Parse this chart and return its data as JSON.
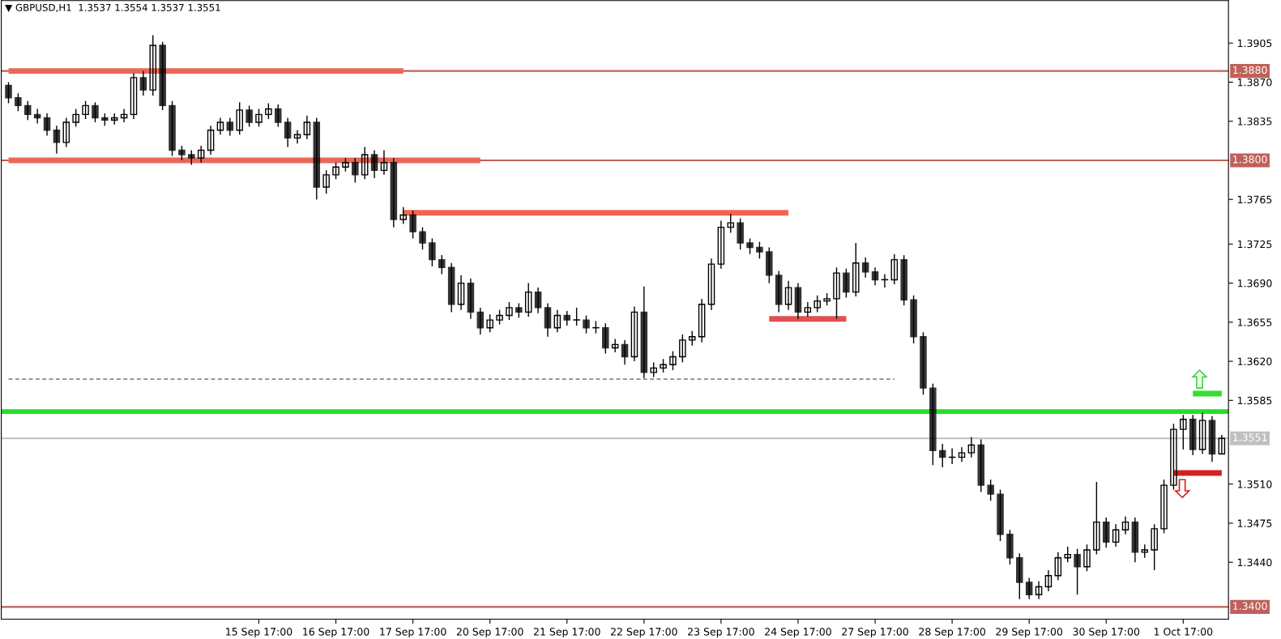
{
  "chart_data": {
    "type": "candlestick",
    "title": "▼ GBPUSD,H1  1.3537 1.3554 1.3537 1.3551",
    "categories": [
      null,
      null,
      null,
      null,
      null,
      null,
      null,
      null,
      null,
      null,
      null,
      null,
      null,
      null,
      null,
      null,
      null,
      null,
      null,
      null,
      null,
      null,
      null,
      null,
      null,
      null,
      "15 Sep 17:00",
      null,
      null,
      null,
      null,
      null,
      null,
      null,
      "16 Sep 17:00",
      null,
      null,
      null,
      null,
      null,
      null,
      null,
      "17 Sep 17:00",
      null,
      null,
      null,
      null,
      null,
      null,
      null,
      "20 Sep 17:00",
      null,
      null,
      null,
      null,
      null,
      null,
      null,
      "21 Sep 17:00",
      null,
      null,
      null,
      null,
      null,
      null,
      null,
      "22 Sep 17:00",
      null,
      null,
      null,
      null,
      null,
      null,
      null,
      "23 Sep 17:00",
      null,
      null,
      null,
      null,
      null,
      null,
      null,
      "24 Sep 17:00",
      null,
      null,
      null,
      null,
      null,
      null,
      null,
      "27 Sep 17:00",
      null,
      null,
      null,
      null,
      null,
      null,
      null,
      "28 Sep 17:00",
      null,
      null,
      null,
      null,
      null,
      null,
      null,
      "29 Sep 17:00",
      null,
      null,
      null,
      null,
      null,
      null,
      null,
      "30 Sep 17:00",
      null,
      null,
      null,
      null,
      null,
      null,
      null,
      "1 Oct 17:00",
      null,
      null,
      null,
      null
    ],
    "ohlc": [
      [
        1.3867,
        1.387,
        1.3851,
        1.3856
      ],
      [
        1.3856,
        1.386,
        1.3844,
        1.3849
      ],
      [
        1.3849,
        1.3853,
        1.3836,
        1.3841
      ],
      [
        1.3841,
        1.3846,
        1.3833,
        1.3838
      ],
      [
        1.3838,
        1.3842,
        1.3822,
        1.3827
      ],
      [
        1.3827,
        1.3831,
        1.3806,
        1.3816
      ],
      [
        1.3816,
        1.3838,
        1.3812,
        1.3834
      ],
      [
        1.3834,
        1.3846,
        1.383,
        1.3841
      ],
      [
        1.3841,
        1.3853,
        1.3837,
        1.3849
      ],
      [
        1.3849,
        1.3852,
        1.3834,
        1.3838
      ],
      [
        1.3838,
        1.3842,
        1.3831,
        1.3836
      ],
      [
        1.3836,
        1.3842,
        1.3832,
        1.3838
      ],
      [
        1.3838,
        1.3846,
        1.3834,
        1.3841
      ],
      [
        1.3841,
        1.3878,
        1.3837,
        1.3874
      ],
      [
        1.3874,
        1.388,
        1.3858,
        1.3863
      ],
      [
        1.3863,
        1.3912,
        1.3858,
        1.3903
      ],
      [
        1.3903,
        1.3906,
        1.3845,
        1.3849
      ],
      [
        1.3849,
        1.3853,
        1.3804,
        1.3809
      ],
      [
        1.3809,
        1.3813,
        1.38,
        1.3805
      ],
      [
        1.3805,
        1.3809,
        1.3796,
        1.3802
      ],
      [
        1.3802,
        1.3813,
        1.3798,
        1.3809
      ],
      [
        1.3809,
        1.3831,
        1.3805,
        1.3827
      ],
      [
        1.3827,
        1.3838,
        1.3823,
        1.3834
      ],
      [
        1.3834,
        1.3838,
        1.3822,
        1.3827
      ],
      [
        1.3827,
        1.3852,
        1.3823,
        1.3845
      ],
      [
        1.3845,
        1.3849,
        1.383,
        1.3834
      ],
      [
        1.3834,
        1.3846,
        1.383,
        1.3841
      ],
      [
        1.3841,
        1.3851,
        1.3837,
        1.3846
      ],
      [
        1.3846,
        1.385,
        1.383,
        1.3834
      ],
      [
        1.3834,
        1.3838,
        1.3812,
        1.382
      ],
      [
        1.382,
        1.3827,
        1.3815,
        1.3823
      ],
      [
        1.3823,
        1.384,
        1.3819,
        1.3834
      ],
      [
        1.3834,
        1.3838,
        1.3765,
        1.3776
      ],
      [
        1.3776,
        1.3791,
        1.377,
        1.3787
      ],
      [
        1.3787,
        1.3798,
        1.3783,
        1.3794
      ],
      [
        1.3794,
        1.3802,
        1.379,
        1.3798
      ],
      [
        1.3798,
        1.3802,
        1.378,
        1.3787
      ],
      [
        1.3787,
        1.3812,
        1.3783,
        1.3805
      ],
      [
        1.3805,
        1.3809,
        1.3784,
        1.3791
      ],
      [
        1.3791,
        1.3809,
        1.3787,
        1.3798
      ],
      [
        1.3798,
        1.3802,
        1.374,
        1.3747
      ],
      [
        1.3747,
        1.3758,
        1.3743,
        1.3751
      ],
      [
        1.3751,
        1.3755,
        1.373,
        1.3736
      ],
      [
        1.3736,
        1.374,
        1.372,
        1.3726
      ],
      [
        1.3726,
        1.373,
        1.3705,
        1.3711
      ],
      [
        1.3711,
        1.3715,
        1.3698,
        1.3704
      ],
      [
        1.3704,
        1.3708,
        1.3664,
        1.3671
      ],
      [
        1.3671,
        1.3697,
        1.3666,
        1.369
      ],
      [
        1.369,
        1.3694,
        1.3658,
        1.3664
      ],
      [
        1.3664,
        1.3668,
        1.3644,
        1.365
      ],
      [
        1.365,
        1.3662,
        1.3646,
        1.3657
      ],
      [
        1.3657,
        1.3666,
        1.3653,
        1.3661
      ],
      [
        1.3661,
        1.3673,
        1.3657,
        1.3668
      ],
      [
        1.3668,
        1.3672,
        1.3659,
        1.3664
      ],
      [
        1.3664,
        1.369,
        1.366,
        1.3682
      ],
      [
        1.3682,
        1.3686,
        1.3663,
        1.3668
      ],
      [
        1.3668,
        1.3672,
        1.3642,
        1.365
      ],
      [
        1.365,
        1.3666,
        1.3646,
        1.3661
      ],
      [
        1.3661,
        1.3665,
        1.3652,
        1.3657
      ],
      [
        1.3657,
        1.3668,
        1.3652,
        1.3657
      ],
      [
        1.3657,
        1.3661,
        1.3645,
        1.365
      ],
      [
        1.365,
        1.3656,
        1.3645,
        1.365
      ],
      [
        1.365,
        1.3654,
        1.3627,
        1.3632
      ],
      [
        1.3632,
        1.364,
        1.3628,
        1.3635
      ],
      [
        1.3635,
        1.3639,
        1.3617,
        1.3624
      ],
      [
        1.3624,
        1.3669,
        1.362,
        1.3664
      ],
      [
        1.3664,
        1.3687,
        1.3605,
        1.361
      ],
      [
        1.361,
        1.3619,
        1.3606,
        1.3614
      ],
      [
        1.3614,
        1.3622,
        1.361,
        1.3617
      ],
      [
        1.3617,
        1.3629,
        1.3612,
        1.3624
      ],
      [
        1.3624,
        1.3644,
        1.3619,
        1.3639
      ],
      [
        1.3639,
        1.3647,
        1.3634,
        1.3642
      ],
      [
        1.3642,
        1.3676,
        1.3637,
        1.3671
      ],
      [
        1.3671,
        1.3712,
        1.3666,
        1.3707
      ],
      [
        1.3707,
        1.3746,
        1.3703,
        1.374
      ],
      [
        1.374,
        1.3752,
        1.3735,
        1.3744
      ],
      [
        1.3744,
        1.3748,
        1.372,
        1.3726
      ],
      [
        1.3726,
        1.373,
        1.3716,
        1.3722
      ],
      [
        1.3722,
        1.3727,
        1.3712,
        1.3718
      ],
      [
        1.3718,
        1.3722,
        1.369,
        1.3697
      ],
      [
        1.3697,
        1.3701,
        1.3664,
        1.3671
      ],
      [
        1.3671,
        1.3692,
        1.3666,
        1.3686
      ],
      [
        1.3686,
        1.369,
        1.3658,
        1.3664
      ],
      [
        1.3664,
        1.3673,
        1.366,
        1.3668
      ],
      [
        1.3668,
        1.3679,
        1.3664,
        1.3674
      ],
      [
        1.3674,
        1.3681,
        1.367,
        1.3676
      ],
      [
        1.3676,
        1.3704,
        1.3658,
        1.3699
      ],
      [
        1.3699,
        1.3703,
        1.3677,
        1.3682
      ],
      [
        1.3682,
        1.3726,
        1.3678,
        1.3708
      ],
      [
        1.3708,
        1.3713,
        1.3695,
        1.37
      ],
      [
        1.37,
        1.3704,
        1.3688,
        1.3693
      ],
      [
        1.3693,
        1.3698,
        1.3686,
        1.3693
      ],
      [
        1.3693,
        1.3716,
        1.3689,
        1.3711
      ],
      [
        1.3711,
        1.3715,
        1.367,
        1.3675
      ],
      [
        1.3675,
        1.3679,
        1.3636,
        1.3642
      ],
      [
        1.3642,
        1.3646,
        1.359,
        1.3596
      ],
      [
        1.3596,
        1.36,
        1.3527,
        1.354
      ],
      [
        1.354,
        1.3546,
        1.3525,
        1.3534
      ],
      [
        1.3534,
        1.3542,
        1.3528,
        1.3534
      ],
      [
        1.3534,
        1.3543,
        1.353,
        1.3538
      ],
      [
        1.3538,
        1.3552,
        1.3534,
        1.3545
      ],
      [
        1.3545,
        1.355,
        1.3503,
        1.3509
      ],
      [
        1.3509,
        1.3514,
        1.3495,
        1.3501
      ],
      [
        1.3501,
        1.3505,
        1.3459,
        1.3465
      ],
      [
        1.3465,
        1.3469,
        1.3438,
        1.3444
      ],
      [
        1.3444,
        1.3448,
        1.3407,
        1.3422
      ],
      [
        1.3422,
        1.3426,
        1.3407,
        1.3411
      ],
      [
        1.3411,
        1.3423,
        1.3407,
        1.3418
      ],
      [
        1.3418,
        1.3433,
        1.3414,
        1.3428
      ],
      [
        1.3428,
        1.3449,
        1.3424,
        1.3444
      ],
      [
        1.3444,
        1.3454,
        1.344,
        1.3447
      ],
      [
        1.3447,
        1.3452,
        1.3411,
        1.3436
      ],
      [
        1.3436,
        1.3456,
        1.3432,
        1.3451
      ],
      [
        1.3451,
        1.3512,
        1.3447,
        1.3476
      ],
      [
        1.3476,
        1.348,
        1.3453,
        1.3458
      ],
      [
        1.3458,
        1.3474,
        1.3454,
        1.3469
      ],
      [
        1.3469,
        1.3481,
        1.3465,
        1.3476
      ],
      [
        1.3476,
        1.348,
        1.344,
        1.3449
      ],
      [
        1.3449,
        1.3456,
        1.3444,
        1.3451
      ],
      [
        1.3451,
        1.3474,
        1.3433,
        1.347
      ],
      [
        1.347,
        1.3514,
        1.3466,
        1.3509
      ],
      [
        1.3509,
        1.3564,
        1.3505,
        1.3559
      ],
      [
        1.3559,
        1.3572,
        1.3541,
        1.3568
      ],
      [
        1.3568,
        1.3572,
        1.3536,
        1.3541
      ],
      [
        1.3541,
        1.3574,
        1.3537,
        1.3567
      ],
      [
        1.3567,
        1.3571,
        1.353,
        1.3537
      ],
      [
        1.3537,
        1.3554,
        1.3537,
        1.3551
      ]
    ],
    "series": [
      {
        "type": "line",
        "color": "#e8685a",
        "values": [
          1.388,
          1.388,
          1.388,
          1.388,
          1.388,
          1.388,
          1.388,
          1.388,
          1.388,
          1.388,
          1.388,
          1.388,
          1.388,
          1.388,
          1.388,
          1.388,
          1.388,
          1.388,
          1.388,
          1.388,
          1.388,
          1.388,
          1.388,
          1.388,
          1.388,
          1.388,
          1.388,
          1.388,
          1.388,
          1.388,
          1.388,
          1.388,
          1.388,
          1.388,
          1.388,
          1.388,
          1.388,
          1.388,
          1.388,
          1.388,
          1.388,
          1.388,
          null,
          null,
          null,
          null,
          null,
          null,
          null,
          null,
          null,
          null,
          null,
          null,
          null,
          null,
          null,
          null,
          null,
          null,
          null,
          null,
          null,
          null,
          null,
          null,
          null,
          null,
          null,
          null,
          null,
          null,
          null,
          null,
          null,
          null,
          null,
          null,
          null,
          null,
          null,
          null,
          null,
          null,
          null,
          null,
          null,
          null,
          null,
          null,
          null,
          null,
          null,
          null,
          null,
          null,
          null,
          null,
          null,
          null,
          null,
          null,
          null,
          null,
          null,
          null,
          null,
          null,
          null,
          null,
          null,
          null,
          null,
          null,
          null,
          null,
          null,
          null,
          null,
          null,
          null,
          null,
          null,
          null,
          null,
          null,
          null
        ]
      },
      {
        "type": "line",
        "color": "#e8685a",
        "values": [
          1.38,
          1.38,
          1.38,
          1.38,
          1.38,
          1.38,
          1.38,
          1.38,
          1.38,
          1.38,
          1.38,
          1.38,
          1.38,
          1.38,
          1.38,
          1.38,
          1.38,
          1.38,
          1.38,
          1.38,
          1.38,
          1.38,
          1.38,
          1.38,
          1.38,
          1.38,
          1.38,
          1.38,
          1.38,
          1.38,
          1.38,
          1.38,
          1.38,
          1.38,
          1.38,
          1.38,
          1.38,
          1.38,
          1.38,
          1.38,
          1.38,
          1.38,
          1.38,
          1.38,
          1.38,
          1.38,
          1.38,
          1.38,
          1.38,
          1.38,
          null,
          null,
          null,
          null,
          null,
          null,
          null,
          null,
          null,
          null,
          null,
          null,
          null,
          null,
          null,
          null,
          null,
          null,
          null,
          null,
          null,
          null,
          null,
          null,
          null,
          null,
          null,
          null,
          null,
          null,
          null,
          null,
          null,
          null,
          null,
          null,
          null,
          null,
          null,
          null,
          null,
          null,
          null,
          null,
          null,
          null,
          null,
          null,
          null,
          null,
          null,
          null,
          null,
          null,
          null,
          null,
          null,
          null,
          null,
          null,
          null,
          null,
          null,
          null,
          null,
          null,
          null,
          null,
          null,
          null,
          null,
          null,
          null,
          null,
          null,
          null,
          null
        ]
      },
      {
        "type": "line",
        "color": "#f26451",
        "values": [
          null,
          null,
          null,
          null,
          null,
          null,
          null,
          null,
          null,
          null,
          null,
          null,
          null,
          null,
          null,
          null,
          null,
          null,
          null,
          null,
          null,
          null,
          null,
          null,
          null,
          null,
          null,
          null,
          null,
          null,
          null,
          null,
          null,
          null,
          null,
          null,
          null,
          null,
          null,
          null,
          null,
          1.3753,
          1.3753,
          1.3753,
          1.3753,
          1.3753,
          1.3753,
          1.3753,
          1.3753,
          1.3753,
          1.3753,
          1.3753,
          1.3753,
          1.3753,
          1.3753,
          1.3753,
          1.3753,
          1.3753,
          1.3753,
          1.3753,
          1.3753,
          1.3753,
          1.3753,
          1.3753,
          1.3753,
          1.3753,
          1.3753,
          1.3753,
          1.3753,
          1.3753,
          1.3753,
          1.3753,
          1.3753,
          1.3753,
          1.3753,
          1.3753,
          1.3753,
          1.3753,
          1.3753,
          1.3753,
          1.3753,
          1.3753,
          null,
          null,
          null,
          null,
          null,
          null,
          null,
          null,
          null,
          null,
          null,
          null,
          null,
          null,
          null,
          null,
          null,
          null,
          null,
          null,
          null,
          null,
          null,
          null,
          null,
          null,
          null,
          null,
          null,
          null,
          null,
          null,
          null,
          null,
          null,
          null,
          null,
          null,
          null,
          null,
          null,
          null,
          null,
          null,
          null
        ]
      },
      {
        "type": "line",
        "color": "#e05050",
        "values": [
          null,
          null,
          null,
          null,
          null,
          null,
          null,
          null,
          null,
          null,
          null,
          null,
          null,
          null,
          null,
          null,
          null,
          null,
          null,
          null,
          null,
          null,
          null,
          null,
          null,
          null,
          null,
          null,
          null,
          null,
          null,
          null,
          null,
          null,
          null,
          null,
          null,
          null,
          null,
          null,
          null,
          null,
          null,
          null,
          null,
          null,
          null,
          null,
          null,
          null,
          null,
          null,
          null,
          null,
          null,
          null,
          null,
          null,
          null,
          null,
          null,
          null,
          null,
          null,
          null,
          null,
          null,
          null,
          null,
          null,
          null,
          null,
          null,
          null,
          null,
          null,
          null,
          null,
          null,
          1.3658,
          1.3658,
          1.3658,
          1.3658,
          1.3658,
          1.3658,
          1.3658,
          1.3658,
          1.3658,
          null,
          null,
          null,
          null,
          null,
          null,
          null,
          null,
          null,
          null,
          null,
          null,
          null,
          null,
          null,
          null,
          null,
          null,
          null,
          null,
          null,
          null,
          null,
          null,
          null,
          null,
          null,
          null,
          null,
          null,
          null,
          null,
          null,
          null,
          null,
          null,
          null,
          null,
          null
        ]
      },
      {
        "type": "line",
        "color": "#8888a8",
        "line_style": "dashed",
        "values": [
          1.3604,
          1.3604,
          1.3604,
          1.3604,
          1.3604,
          1.3604,
          1.3604,
          1.3604,
          1.3604,
          1.3604,
          1.3604,
          1.3604,
          1.3604,
          1.3604,
          1.3604,
          1.3604,
          1.3604,
          1.3604,
          1.3604,
          1.3604,
          1.3604,
          1.3604,
          1.3604,
          1.3604,
          1.3604,
          1.3604,
          1.3604,
          1.3604,
          1.3604,
          1.3604,
          1.3604,
          1.3604,
          1.3604,
          1.3604,
          1.3604,
          1.3604,
          1.3604,
          1.3604,
          1.3604,
          1.3604,
          1.3604,
          1.3604,
          1.3604,
          1.3604,
          1.3604,
          1.3604,
          1.3604,
          1.3604,
          1.3604,
          1.3604,
          1.3604,
          1.3604,
          1.3604,
          1.3604,
          1.3604,
          1.3604,
          1.3604,
          1.3604,
          1.3604,
          1.3604,
          1.3604,
          1.3604,
          1.3604,
          1.3604,
          1.3604,
          1.3604,
          1.3604,
          1.3604,
          1.3604,
          1.3604,
          1.3604,
          1.3604,
          1.3604,
          1.3604,
          1.3604,
          1.3604,
          1.3604,
          1.3604,
          1.3604,
          1.3604,
          1.3604,
          1.3604,
          1.3604,
          1.3604,
          1.3604,
          1.3604,
          1.3604,
          1.3604,
          1.3604,
          1.3604,
          1.3604,
          1.3604,
          1.3604,
          null,
          null,
          null,
          null,
          null,
          null,
          null,
          null,
          null,
          null,
          null,
          null,
          null,
          null,
          null,
          null,
          null,
          null,
          null,
          null,
          null,
          null,
          null,
          null,
          null,
          null,
          null,
          null,
          null,
          null,
          null,
          null,
          null,
          null
        ]
      },
      {
        "type": "line",
        "color": "#d42020",
        "values": [
          null,
          null,
          null,
          null,
          null,
          null,
          null,
          null,
          null,
          null,
          null,
          null,
          null,
          null,
          null,
          null,
          null,
          null,
          null,
          null,
          null,
          null,
          null,
          null,
          null,
          null,
          null,
          null,
          null,
          null,
          null,
          null,
          null,
          null,
          null,
          null,
          null,
          null,
          null,
          null,
          null,
          null,
          null,
          null,
          null,
          null,
          null,
          null,
          null,
          null,
          null,
          null,
          null,
          null,
          null,
          null,
          null,
          null,
          null,
          null,
          null,
          null,
          null,
          null,
          null,
          null,
          null,
          null,
          null,
          null,
          null,
          null,
          null,
          null,
          null,
          null,
          null,
          null,
          null,
          null,
          null,
          null,
          null,
          null,
          null,
          null,
          null,
          null,
          null,
          null,
          null,
          null,
          null,
          null,
          null,
          null,
          null,
          null,
          null,
          null,
          null,
          null,
          null,
          null,
          null,
          null,
          null,
          null,
          null,
          null,
          null,
          null,
          null,
          null,
          null,
          null,
          null,
          null,
          null,
          null,
          null,
          1.352,
          1.352,
          1.352,
          1.352,
          1.352,
          1.352
        ]
      },
      {
        "type": "line",
        "color": "#33dd33",
        "values": [
          null,
          null,
          null,
          null,
          null,
          null,
          null,
          null,
          null,
          null,
          null,
          null,
          null,
          null,
          null,
          null,
          null,
          null,
          null,
          null,
          null,
          null,
          null,
          null,
          null,
          null,
          null,
          null,
          null,
          null,
          null,
          null,
          null,
          null,
          null,
          null,
          null,
          null,
          null,
          null,
          null,
          null,
          null,
          null,
          null,
          null,
          null,
          null,
          null,
          null,
          null,
          null,
          null,
          null,
          null,
          null,
          null,
          null,
          null,
          null,
          null,
          null,
          null,
          null,
          null,
          null,
          null,
          null,
          null,
          null,
          null,
          null,
          null,
          null,
          null,
          null,
          null,
          null,
          null,
          null,
          null,
          null,
          null,
          null,
          null,
          null,
          null,
          null,
          null,
          null,
          null,
          null,
          null,
          null,
          null,
          null,
          null,
          null,
          null,
          null,
          null,
          null,
          null,
          null,
          null,
          null,
          null,
          null,
          null,
          null,
          null,
          null,
          null,
          null,
          null,
          null,
          null,
          null,
          null,
          null,
          null,
          null,
          null,
          1.3591,
          1.3591,
          1.3591,
          1.3591
        ]
      }
    ],
    "ref_lines": [
      {
        "axis": "y",
        "value": 1.388,
        "label": "1.3880",
        "color": "#c0605a"
      },
      {
        "axis": "y",
        "value": 1.38,
        "label": "1.3800",
        "color": "#c0605a"
      },
      {
        "axis": "y",
        "value": 1.34,
        "label": "1.3400",
        "color": "#c0605a"
      },
      {
        "axis": "y",
        "value": 1.3551,
        "label": "1.3551",
        "color": "#c0c0c0"
      },
      {
        "axis": "y",
        "value": 1.3575,
        "color": "#22e022"
      }
    ],
    "ylim": [
      1.3389,
      1.3943
    ],
    "yticks": [
      1.3905,
      {
        "value": 1.387,
        "label": "1.3870"
      },
      1.3835,
      1.3765,
      1.3725,
      {
        "value": 1.369,
        "label": "1.3690"
      },
      1.3655,
      {
        "value": 1.362,
        "label": "1.3620"
      },
      1.3585,
      {
        "value": 1.351,
        "label": "1.3510"
      },
      1.3475,
      {
        "value": 1.344,
        "label": "1.3440"
      }
    ],
    "grid": false
  }
}
